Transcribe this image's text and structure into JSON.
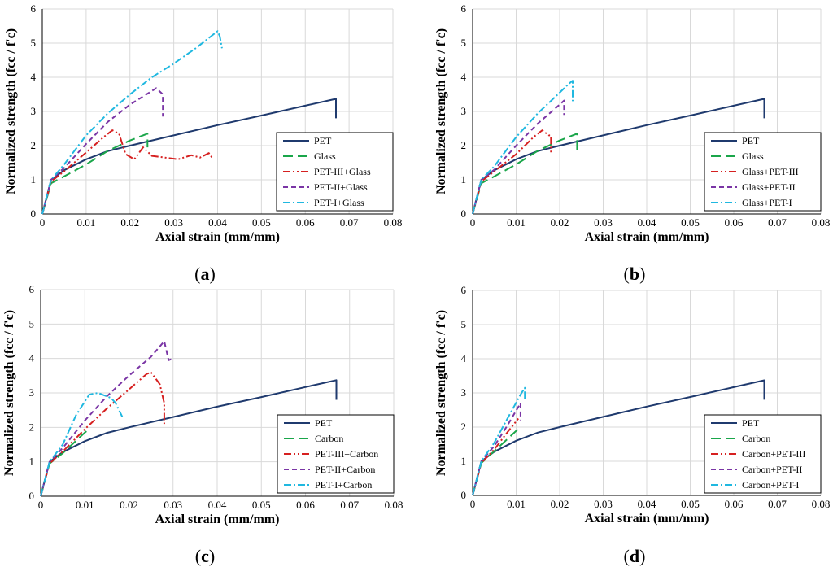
{
  "figure": {
    "panels": [
      {
        "label": "a",
        "legend": [
          "PET",
          "Glass",
          "PET-III+Glass",
          "PET-II+Glass",
          "PET-I+Glass"
        ]
      },
      {
        "label": "b",
        "legend": [
          "PET",
          "Glass",
          "Glass+PET-III",
          "Glass+PET-II",
          "Glass+PET-I"
        ]
      },
      {
        "label": "c",
        "legend": [
          "PET",
          "Carbon",
          "PET-III+Carbon",
          "PET-II+Carbon",
          "PET-I+Carbon"
        ]
      },
      {
        "label": "d",
        "legend": [
          "PET",
          "Carbon",
          "Carbon+PET-III",
          "Carbon+PET-II",
          "Carbon+PET-I"
        ]
      }
    ]
  },
  "chart_data": [
    {
      "type": "line",
      "panel": "a",
      "xlabel": "Axial strain (mm/mm)",
      "ylabel": "Normalized strength (fcc / f'c)",
      "xlim": [
        0,
        0.08
      ],
      "ylim": [
        0,
        6
      ],
      "xticks": [
        "0",
        "0.01",
        "0.02",
        "0.03",
        "0.04",
        "0.05",
        "0.06",
        "0.07",
        "0.08"
      ],
      "yticks": [
        "0",
        "1",
        "2",
        "3",
        "4",
        "5",
        "6"
      ],
      "grid": true,
      "legend_position": "bottom-right",
      "series": [
        {
          "name": "PET",
          "color": "#1f3a6e",
          "dash": "solid",
          "points": [
            [
              0,
              0
            ],
            [
              0.002,
              1.0
            ],
            [
              0.005,
              1.28
            ],
            [
              0.01,
              1.6
            ],
            [
              0.015,
              1.84
            ],
            [
              0.02,
              2.0
            ],
            [
              0.03,
              2.3
            ],
            [
              0.04,
              2.6
            ],
            [
              0.05,
              2.88
            ],
            [
              0.06,
              3.17
            ],
            [
              0.067,
              3.37
            ],
            [
              0.067,
              2.8
            ]
          ]
        },
        {
          "name": "Glass",
          "color": "#1aa64a",
          "dash": "long-dash",
          "points": [
            [
              0,
              0
            ],
            [
              0.002,
              0.9
            ],
            [
              0.005,
              1.1
            ],
            [
              0.01,
              1.45
            ],
            [
              0.015,
              1.85
            ],
            [
              0.02,
              2.15
            ],
            [
              0.024,
              2.35
            ],
            [
              0.024,
              1.95
            ]
          ]
        },
        {
          "name": "PET-III+Glass",
          "color": "#d62020",
          "dash": "dash-dot-dot",
          "points": [
            [
              0,
              0
            ],
            [
              0.002,
              0.95
            ],
            [
              0.005,
              1.25
            ],
            [
              0.01,
              1.8
            ],
            [
              0.014,
              2.25
            ],
            [
              0.016,
              2.45
            ],
            [
              0.0175,
              2.35
            ],
            [
              0.019,
              1.75
            ],
            [
              0.021,
              1.6
            ],
            [
              0.023,
              1.95
            ],
            [
              0.025,
              1.7
            ],
            [
              0.028,
              1.65
            ],
            [
              0.031,
              1.6
            ],
            [
              0.034,
              1.72
            ],
            [
              0.036,
              1.65
            ],
            [
              0.038,
              1.78
            ],
            [
              0.039,
              1.6
            ]
          ]
        },
        {
          "name": "PET-II+Glass",
          "color": "#7a35a5",
          "dash": "dash",
          "points": [
            [
              0,
              0
            ],
            [
              0.002,
              1.0
            ],
            [
              0.005,
              1.35
            ],
            [
              0.01,
              2.05
            ],
            [
              0.015,
              2.7
            ],
            [
              0.02,
              3.2
            ],
            [
              0.025,
              3.6
            ],
            [
              0.026,
              3.68
            ],
            [
              0.0275,
              3.5
            ],
            [
              0.0275,
              2.85
            ]
          ]
        },
        {
          "name": "PET-I+Glass",
          "color": "#20b8e0",
          "dash": "dash-dot",
          "points": [
            [
              0,
              0
            ],
            [
              0.002,
              1.0
            ],
            [
              0.005,
              1.45
            ],
            [
              0.01,
              2.3
            ],
            [
              0.015,
              2.95
            ],
            [
              0.02,
              3.5
            ],
            [
              0.025,
              4.0
            ],
            [
              0.03,
              4.4
            ],
            [
              0.035,
              4.85
            ],
            [
              0.04,
              5.35
            ],
            [
              0.0405,
              5.2
            ],
            [
              0.041,
              4.85
            ]
          ]
        }
      ]
    },
    {
      "type": "line",
      "panel": "b",
      "xlabel": "Axial strain (mm/mm)",
      "ylabel": "Normalized strength (fcc / f'c)",
      "xlim": [
        0,
        0.08
      ],
      "ylim": [
        0,
        6
      ],
      "xticks": [
        "0",
        "0.01",
        "0.02",
        "0.03",
        "0.04",
        "0.05",
        "0.06",
        "0.07",
        "0.08"
      ],
      "yticks": [
        "0",
        "1",
        "2",
        "3",
        "4",
        "5",
        "6"
      ],
      "grid": true,
      "legend_position": "bottom-right",
      "series": [
        {
          "name": "PET",
          "color": "#1f3a6e",
          "dash": "solid",
          "points": [
            [
              0,
              0
            ],
            [
              0.002,
              1.0
            ],
            [
              0.005,
              1.28
            ],
            [
              0.01,
              1.6
            ],
            [
              0.015,
              1.84
            ],
            [
              0.02,
              2.0
            ],
            [
              0.03,
              2.3
            ],
            [
              0.04,
              2.6
            ],
            [
              0.05,
              2.88
            ],
            [
              0.06,
              3.17
            ],
            [
              0.067,
              3.37
            ],
            [
              0.067,
              2.8
            ]
          ]
        },
        {
          "name": "Glass",
          "color": "#1aa64a",
          "dash": "long-dash",
          "points": [
            [
              0,
              0
            ],
            [
              0.002,
              0.9
            ],
            [
              0.005,
              1.1
            ],
            [
              0.01,
              1.45
            ],
            [
              0.015,
              1.85
            ],
            [
              0.02,
              2.15
            ],
            [
              0.024,
              2.35
            ],
            [
              0.024,
              1.8
            ]
          ]
        },
        {
          "name": "Glass+PET-III",
          "color": "#d62020",
          "dash": "dash-dot-dot",
          "points": [
            [
              0,
              0
            ],
            [
              0.002,
              0.95
            ],
            [
              0.005,
              1.25
            ],
            [
              0.01,
              1.75
            ],
            [
              0.014,
              2.25
            ],
            [
              0.016,
              2.45
            ],
            [
              0.0175,
              2.3
            ],
            [
              0.018,
              2.3
            ],
            [
              0.018,
              1.8
            ]
          ]
        },
        {
          "name": "Glass+PET-II",
          "color": "#7a35a5",
          "dash": "dash",
          "points": [
            [
              0,
              0
            ],
            [
              0.002,
              1.0
            ],
            [
              0.005,
              1.3
            ],
            [
              0.01,
              2.0
            ],
            [
              0.015,
              2.65
            ],
            [
              0.02,
              3.2
            ],
            [
              0.021,
              3.32
            ],
            [
              0.021,
              2.9
            ]
          ]
        },
        {
          "name": "Glass+PET-I",
          "color": "#20b8e0",
          "dash": "dash-dot",
          "points": [
            [
              0,
              0
            ],
            [
              0.002,
              1.0
            ],
            [
              0.005,
              1.4
            ],
            [
              0.01,
              2.25
            ],
            [
              0.015,
              2.95
            ],
            [
              0.02,
              3.55
            ],
            [
              0.022,
              3.8
            ],
            [
              0.023,
              3.9
            ],
            [
              0.023,
              3.3
            ]
          ]
        }
      ]
    },
    {
      "type": "line",
      "panel": "c",
      "xlabel": "Axial strain (mm/mm)",
      "ylabel": "Normalized strength (fcc / f'c)",
      "xlim": [
        0,
        0.08
      ],
      "ylim": [
        0,
        6
      ],
      "xticks": [
        "0",
        "0.01",
        "0.02",
        "0.03",
        "0.04",
        "0.05",
        "0.06",
        "0.07",
        "0.08"
      ],
      "yticks": [
        "0",
        "1",
        "2",
        "3",
        "4",
        "5",
        "6"
      ],
      "grid": true,
      "legend_position": "bottom-right",
      "series": [
        {
          "name": "PET",
          "color": "#1f3a6e",
          "dash": "solid",
          "points": [
            [
              0,
              0
            ],
            [
              0.002,
              1.0
            ],
            [
              0.005,
              1.28
            ],
            [
              0.01,
              1.6
            ],
            [
              0.015,
              1.84
            ],
            [
              0.02,
              2.0
            ],
            [
              0.03,
              2.3
            ],
            [
              0.04,
              2.6
            ],
            [
              0.05,
              2.88
            ],
            [
              0.06,
              3.17
            ],
            [
              0.067,
              3.37
            ],
            [
              0.067,
              2.8
            ]
          ]
        },
        {
          "name": "Carbon",
          "color": "#1aa64a",
          "dash": "long-dash",
          "points": [
            [
              0,
              0
            ],
            [
              0.002,
              0.95
            ],
            [
              0.005,
              1.25
            ],
            [
              0.01,
              1.85
            ],
            [
              0.011,
              1.95
            ]
          ]
        },
        {
          "name": "PET-III+Carbon",
          "color": "#d62020",
          "dash": "dash-dot-dot",
          "points": [
            [
              0,
              0
            ],
            [
              0.002,
              0.95
            ],
            [
              0.005,
              1.3
            ],
            [
              0.01,
              1.95
            ],
            [
              0.015,
              2.55
            ],
            [
              0.02,
              3.1
            ],
            [
              0.024,
              3.55
            ],
            [
              0.025,
              3.6
            ],
            [
              0.027,
              3.25
            ],
            [
              0.028,
              2.7
            ],
            [
              0.028,
              2.1
            ]
          ]
        },
        {
          "name": "PET-II+Carbon",
          "color": "#7a35a5",
          "dash": "dash",
          "points": [
            [
              0,
              0
            ],
            [
              0.002,
              1.0
            ],
            [
              0.005,
              1.4
            ],
            [
              0.01,
              2.2
            ],
            [
              0.015,
              2.9
            ],
            [
              0.02,
              3.5
            ],
            [
              0.025,
              4.05
            ],
            [
              0.028,
              4.5
            ],
            [
              0.029,
              3.95
            ],
            [
              0.03,
              4.0
            ]
          ]
        },
        {
          "name": "PET-I+Carbon",
          "color": "#20b8e0",
          "dash": "dash-dot",
          "points": [
            [
              0,
              0
            ],
            [
              0.002,
              1.0
            ],
            [
              0.005,
              1.5
            ],
            [
              0.008,
              2.35
            ],
            [
              0.011,
              2.95
            ],
            [
              0.013,
              3.0
            ],
            [
              0.016,
              2.85
            ],
            [
              0.017,
              2.7
            ],
            [
              0.0185,
              2.3
            ]
          ]
        }
      ]
    },
    {
      "type": "line",
      "panel": "d",
      "xlabel": "Axial strain (mm/mm)",
      "ylabel": "Normalized strength (fcc / f'c)",
      "xlim": [
        0,
        0.08
      ],
      "ylim": [
        0,
        6
      ],
      "xticks": [
        "0",
        "0.01",
        "0.02",
        "0.03",
        "0.04",
        "0.05",
        "0.06",
        "0.07",
        "0.08"
      ],
      "yticks": [
        "0",
        "1",
        "2",
        "3",
        "4",
        "5",
        "6"
      ],
      "grid": true,
      "legend_position": "bottom-right",
      "series": [
        {
          "name": "PET",
          "color": "#1f3a6e",
          "dash": "solid",
          "points": [
            [
              0,
              0
            ],
            [
              0.002,
              1.0
            ],
            [
              0.005,
              1.28
            ],
            [
              0.01,
              1.6
            ],
            [
              0.015,
              1.84
            ],
            [
              0.02,
              2.0
            ],
            [
              0.03,
              2.3
            ],
            [
              0.04,
              2.6
            ],
            [
              0.05,
              2.88
            ],
            [
              0.06,
              3.17
            ],
            [
              0.067,
              3.37
            ],
            [
              0.067,
              2.8
            ]
          ]
        },
        {
          "name": "Carbon",
          "color": "#1aa64a",
          "dash": "long-dash",
          "points": [
            [
              0,
              0
            ],
            [
              0.002,
              0.95
            ],
            [
              0.005,
              1.3
            ],
            [
              0.008,
              1.65
            ],
            [
              0.0105,
              1.95
            ]
          ]
        },
        {
          "name": "Carbon+PET-III",
          "color": "#d62020",
          "dash": "dash-dot-dot",
          "points": [
            [
              0,
              0
            ],
            [
              0.002,
              0.95
            ],
            [
              0.005,
              1.35
            ],
            [
              0.008,
              1.85
            ],
            [
              0.0105,
              2.25
            ]
          ]
        },
        {
          "name": "Carbon+PET-II",
          "color": "#7a35a5",
          "dash": "dash",
          "points": [
            [
              0,
              0
            ],
            [
              0.002,
              1.0
            ],
            [
              0.005,
              1.45
            ],
            [
              0.008,
              2.05
            ],
            [
              0.011,
              2.7
            ],
            [
              0.011,
              2.2
            ]
          ]
        },
        {
          "name": "Carbon+PET-I",
          "color": "#20b8e0",
          "dash": "dash-dot",
          "points": [
            [
              0,
              0
            ],
            [
              0.002,
              1.0
            ],
            [
              0.005,
              1.55
            ],
            [
              0.008,
              2.25
            ],
            [
              0.011,
              2.95
            ],
            [
              0.012,
              3.15
            ],
            [
              0.012,
              2.8
            ]
          ]
        }
      ]
    }
  ]
}
